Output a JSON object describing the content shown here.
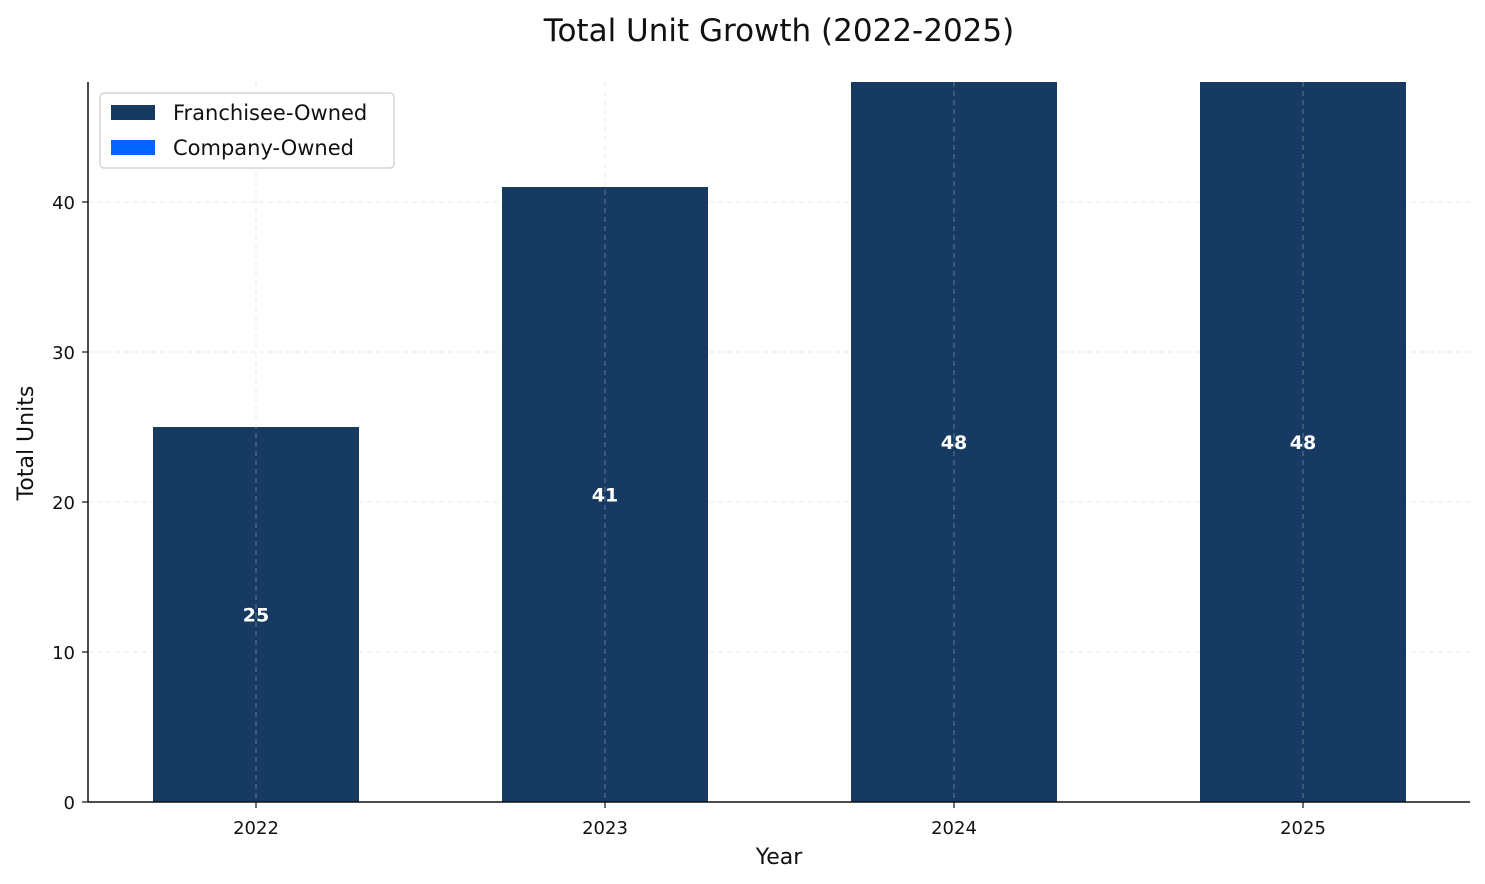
{
  "chart_data": {
    "type": "bar",
    "stacked": true,
    "title": "Total Unit Growth (2022-2025)",
    "xlabel": "Year",
    "ylabel": "Total Units",
    "categories": [
      "2022",
      "2023",
      "2024",
      "2025"
    ],
    "series": [
      {
        "name": "Franchisee-Owned",
        "values": [
          25,
          41,
          48,
          48
        ],
        "color": "#163a61"
      },
      {
        "name": "Company-Owned",
        "values": [
          0,
          0,
          0,
          0
        ],
        "color": "#0066ff"
      }
    ],
    "data_labels": [
      "25",
      "41",
      "48",
      "48"
    ],
    "ylim": [
      0,
      48
    ],
    "yticks": [
      0,
      10,
      20,
      30,
      40
    ],
    "grid": true,
    "legend_position": "top-left"
  }
}
